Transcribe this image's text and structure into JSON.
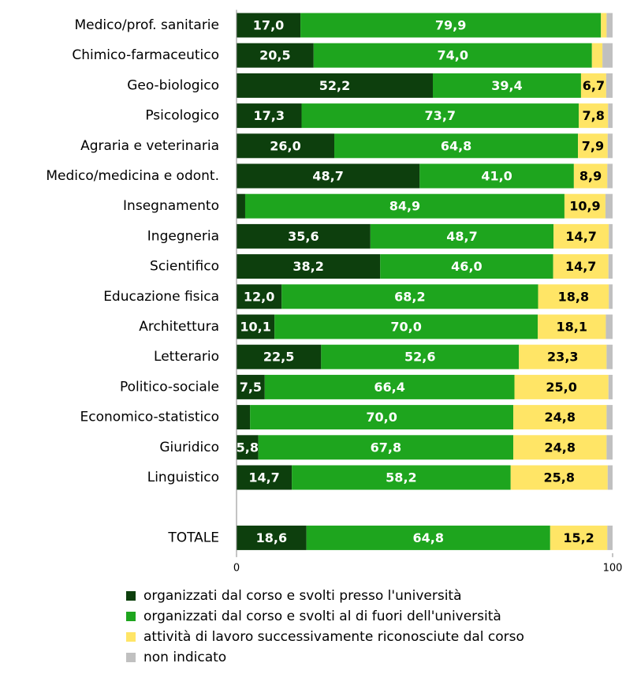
{
  "chart_data": {
    "type": "stacked-bar-horizontal",
    "categories": [
      "Medico/prof. sanitarie",
      "Chimico-farmaceutico",
      "Geo-biologico",
      "Psicologico",
      "Agraria e veterinaria",
      "Medico/medicina e odont.",
      "Insegnamento",
      "Ingegneria",
      "Scientifico",
      "Educazione fisica",
      "Architettura",
      "Letterario",
      "Politico-sociale",
      "Economico-statistico",
      "Giuridico",
      "Linguistico",
      null,
      "TOTALE"
    ],
    "series": [
      {
        "name": "organizzati dal corso e svolti presso l'università",
        "color": "#0d3f0d",
        "label_color": "#ffffff",
        "values": [
          17.0,
          20.5,
          52.2,
          17.3,
          26.0,
          48.7,
          2.3,
          35.6,
          38.2,
          12.0,
          10.1,
          22.5,
          7.5,
          3.6,
          5.8,
          14.7,
          null,
          18.6
        ],
        "value_labels": [
          "17,0",
          "20,5",
          "52,2",
          "17,3",
          "26,0",
          "48,7",
          null,
          "35,6",
          "38,2",
          "12,0",
          "10,1",
          "22,5",
          "7,5",
          null,
          "5,8",
          "14,7",
          null,
          "18,6"
        ]
      },
      {
        "name": "organizzati dal corso e svolti al di fuori dell'università",
        "color": "#1ea51e",
        "label_color": "#ffffff",
        "values": [
          79.9,
          74.0,
          39.4,
          73.7,
          64.8,
          41.0,
          84.9,
          48.7,
          46.0,
          68.2,
          70.0,
          52.6,
          66.4,
          70.0,
          67.8,
          58.2,
          null,
          64.8
        ],
        "value_labels": [
          "79,9",
          "74,0",
          "39,4",
          "73,7",
          "64,8",
          "41,0",
          "84,9",
          "48,7",
          "46,0",
          "68,2",
          "70,0",
          "52,6",
          "66,4",
          "70,0",
          "67,8",
          "58,2",
          null,
          "64,8"
        ]
      },
      {
        "name": "attività di lavoro successivamente riconosciute dal corso",
        "color": "#ffe566",
        "label_color": "#000000",
        "values": [
          1.5,
          2.8,
          6.7,
          7.8,
          7.9,
          8.9,
          10.9,
          14.7,
          14.7,
          18.8,
          18.1,
          23.3,
          25.0,
          24.8,
          24.8,
          25.8,
          null,
          15.2
        ],
        "value_labels": [
          null,
          null,
          "6,7",
          "7,8",
          "7,9",
          "8,9",
          "10,9",
          "14,7",
          "14,7",
          "18,8",
          "18,1",
          "23,3",
          "25,0",
          "24,8",
          "24,8",
          "25,8",
          null,
          "15,2"
        ]
      },
      {
        "name": "non indicato",
        "color": "#c0c0c0",
        "label_color": "#000000",
        "values": [
          1.6,
          2.7,
          1.7,
          1.2,
          1.3,
          1.4,
          1.9,
          1.0,
          1.1,
          1.0,
          1.8,
          1.6,
          1.1,
          1.6,
          1.6,
          1.3,
          null,
          1.4
        ],
        "value_labels": [
          null,
          null,
          null,
          null,
          null,
          null,
          null,
          null,
          null,
          null,
          null,
          null,
          null,
          null,
          null,
          null,
          null,
          null
        ]
      }
    ],
    "xlim": [
      0,
      100
    ],
    "xticks": [
      0,
      100
    ]
  }
}
